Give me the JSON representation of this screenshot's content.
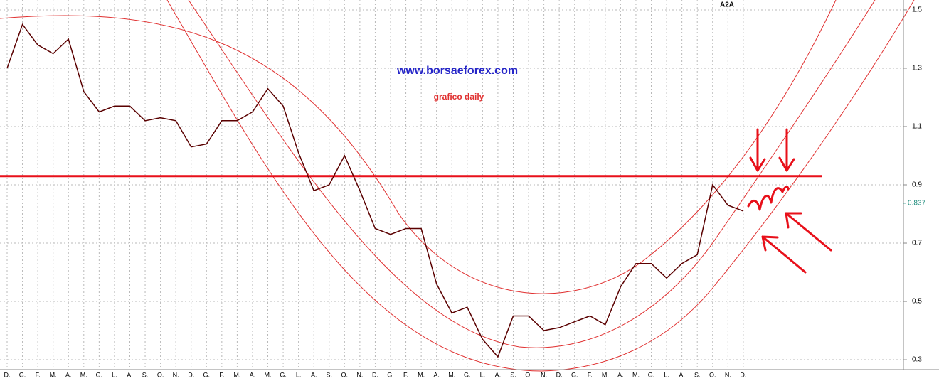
{
  "chart_data": {
    "type": "line",
    "ticker": "A2A",
    "title": "www.borsaeforex.com",
    "subtitle": "grafico daily",
    "categories": [
      "D.",
      "G.",
      "F.",
      "M.",
      "A.",
      "M.",
      "G.",
      "L.",
      "A.",
      "S.",
      "O.",
      "N.",
      "D.",
      "G.",
      "F.",
      "M.",
      "A.",
      "M.",
      "G.",
      "L.",
      "A.",
      "S.",
      "O.",
      "N.",
      "D.",
      "G.",
      "F.",
      "M.",
      "A.",
      "M.",
      "G.",
      "L.",
      "A.",
      "S.",
      "O.",
      "N.",
      "D.",
      "G.",
      "F.",
      "M.",
      "A.",
      "M.",
      "G.",
      "L.",
      "A.",
      "S.",
      "O.",
      "N.",
      "D."
    ],
    "series": [
      {
        "name": "A2A",
        "color": "#5a0000",
        "values": [
          1.3,
          1.45,
          1.38,
          1.35,
          1.4,
          1.22,
          1.15,
          1.17,
          1.17,
          1.12,
          1.13,
          1.12,
          1.03,
          1.04,
          1.12,
          1.12,
          1.15,
          1.23,
          1.17,
          1.01,
          0.88,
          0.9,
          1.0,
          0.88,
          0.75,
          0.73,
          0.75,
          0.75,
          0.56,
          0.46,
          0.48,
          0.37,
          0.31,
          0.45,
          0.45,
          0.4,
          0.41,
          0.43,
          0.45,
          0.42,
          0.55,
          0.63,
          0.63,
          0.58,
          0.63,
          0.66,
          0.9,
          0.83,
          0.81
        ]
      }
    ],
    "last_value": 0.837,
    "resistance": 0.93,
    "ylim": [
      0.266,
      1.534
    ],
    "yticks": [
      0.3,
      0.5,
      0.7,
      0.9,
      1.1,
      1.3,
      1.5
    ],
    "grid": true
  }
}
